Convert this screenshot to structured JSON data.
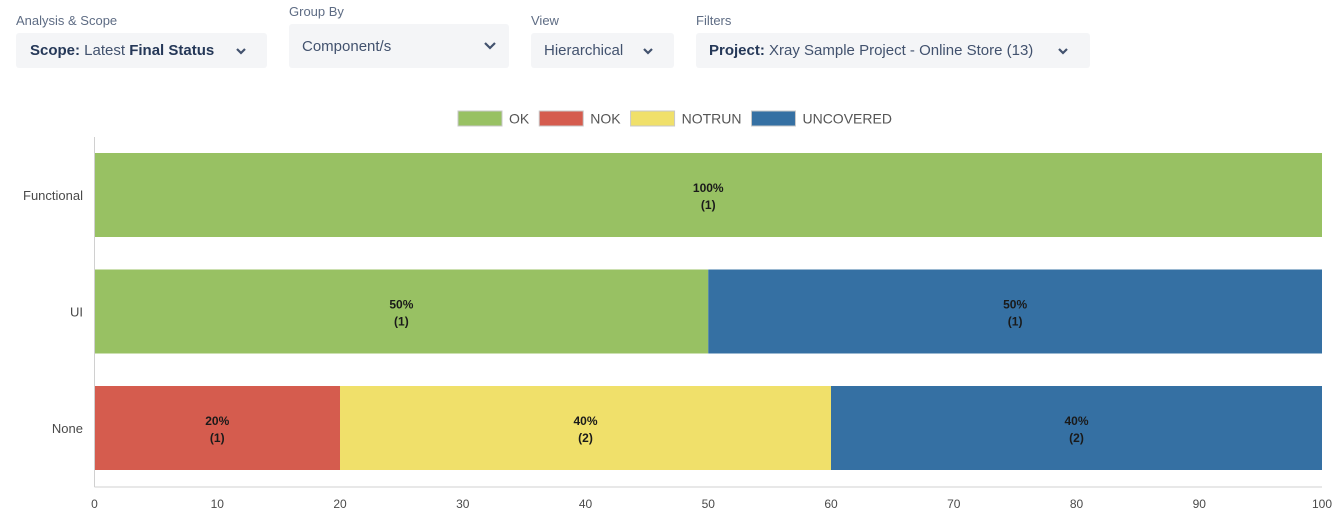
{
  "controls": {
    "analysis": {
      "label": "Analysis & Scope",
      "prefix": "Scope:",
      "mid": " Latest ",
      "value": "Final Status"
    },
    "group_by": {
      "label": "Group By",
      "value": "Component/s"
    },
    "view": {
      "label": "View",
      "value": "Hierarchical"
    },
    "filters": {
      "label": "Filters",
      "prefix": "Project:",
      "value": " Xray Sample Project - Online Store (13)"
    }
  },
  "chart_data": {
    "type": "bar",
    "orientation": "horizontal",
    "stacked": true,
    "categories": [
      "Functional",
      "UI",
      "None"
    ],
    "series": [
      {
        "name": "OK",
        "color": "#98c163",
        "values": [
          100,
          50,
          0
        ],
        "counts": [
          1,
          1,
          0
        ]
      },
      {
        "name": "NOK",
        "color": "#d55c4e",
        "values": [
          0,
          0,
          20
        ],
        "counts": [
          0,
          0,
          1
        ]
      },
      {
        "name": "NOTRUN",
        "color": "#f0e06a",
        "values": [
          0,
          0,
          40
        ],
        "counts": [
          0,
          0,
          2
        ]
      },
      {
        "name": "UNCOVERED",
        "color": "#3570a3",
        "values": [
          0,
          50,
          40
        ],
        "counts": [
          0,
          1,
          2
        ]
      }
    ],
    "xlim": [
      0,
      100
    ],
    "xticks": [
      0,
      10,
      20,
      30,
      40,
      50,
      60,
      70,
      80,
      90,
      100
    ],
    "legend_position": "top-center",
    "grid": false
  }
}
